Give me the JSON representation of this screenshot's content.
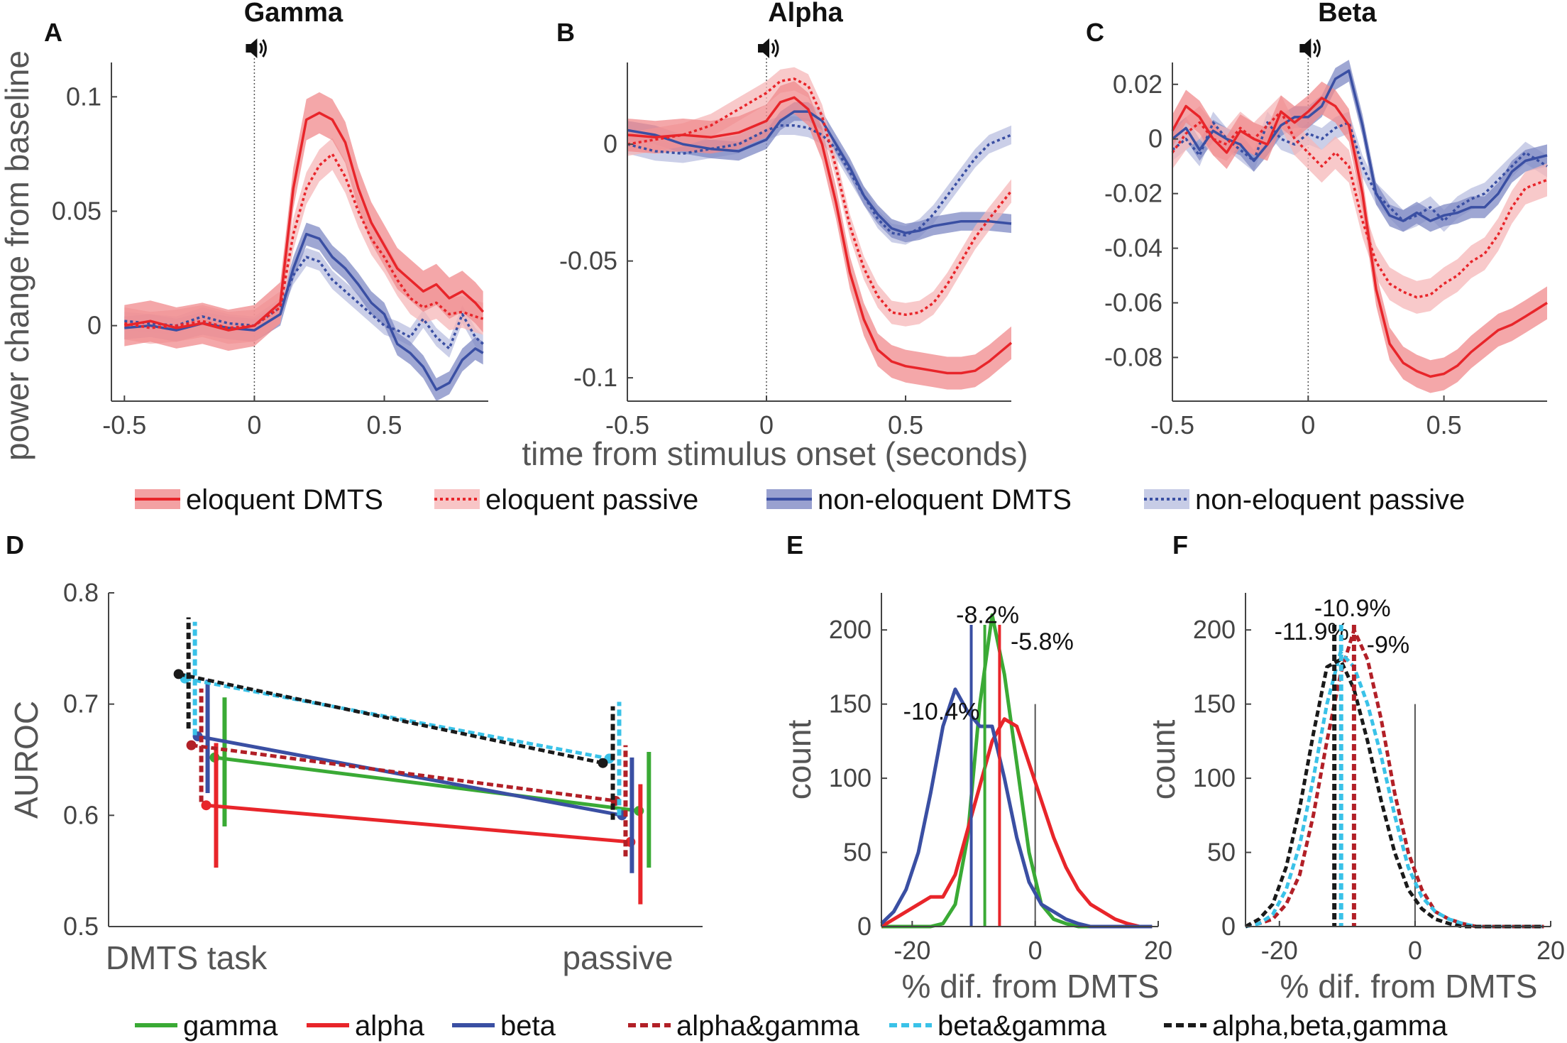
{
  "colors": {
    "red": "#e8252a",
    "red_band": "#f08a8c",
    "red_band_light": "#f6b7b8",
    "blue": "#3a4fa3",
    "blue_band": "#7f8ac4",
    "blue_band_light": "#b9bfe0",
    "green": "#3aaa35",
    "darkred": "#b22027",
    "cyan": "#3ac2e8",
    "black": "#1a1a1a",
    "axis": "#444444"
  },
  "shared": {
    "ylabel_top": "power change from baseline",
    "xlabel_top": "time from stimulus onset (seconds)",
    "speaker_icon": "speaker-icon"
  },
  "legend_top": [
    {
      "label": "eloquent DMTS",
      "style": "solid",
      "color": "red"
    },
    {
      "label": "eloquent passive",
      "style": "dotted",
      "color": "red"
    },
    {
      "label": "non-eloquent DMTS",
      "style": "solid",
      "color": "blue"
    },
    {
      "label": "non-eloquent passive",
      "style": "dotted",
      "color": "blue"
    }
  ],
  "legend_bottom": [
    {
      "label": "gamma",
      "style": "solid",
      "color": "green"
    },
    {
      "label": "alpha",
      "style": "solid",
      "color": "red"
    },
    {
      "label": "beta",
      "style": "solid",
      "color": "blue"
    },
    {
      "label": "alpha&gamma",
      "style": "dashed",
      "color": "darkred"
    },
    {
      "label": "beta&gamma",
      "style": "dashed",
      "color": "cyan"
    },
    {
      "label": "alpha,beta,gamma",
      "style": "dashed",
      "color": "black"
    }
  ],
  "chart_data": [
    {
      "panel": "A",
      "type": "line",
      "title": "Gamma",
      "xlim": [
        -0.55,
        0.9
      ],
      "ylim": [
        -0.033,
        0.115
      ],
      "xticks": [
        -0.5,
        0,
        0.5
      ],
      "xtick_labels": [
        "-0.5",
        "0",
        "0.5"
      ],
      "yticks": [
        0,
        0.05,
        0.1
      ],
      "ytick_labels": [
        "0",
        "0.05",
        "0.1"
      ],
      "x": [
        -0.5,
        -0.4,
        -0.3,
        -0.2,
        -0.1,
        0.0,
        0.1,
        0.15,
        0.2,
        0.25,
        0.3,
        0.35,
        0.4,
        0.45,
        0.5,
        0.55,
        0.6,
        0.65,
        0.7,
        0.75,
        0.8,
        0.85,
        0.88
      ],
      "series": [
        {
          "name": "eloquent DMTS",
          "style": "solid",
          "color": "red",
          "band": 0.009,
          "values": [
            0.0,
            0.002,
            -0.001,
            0.001,
            -0.002,
            0.0,
            0.01,
            0.06,
            0.09,
            0.093,
            0.09,
            0.08,
            0.06,
            0.045,
            0.035,
            0.025,
            0.02,
            0.015,
            0.018,
            0.012,
            0.015,
            0.01,
            0.006
          ]
        },
        {
          "name": "eloquent passive",
          "style": "dotted",
          "color": "red",
          "band": 0.007,
          "values": [
            0.001,
            -0.001,
            0.0,
            0.002,
            -0.001,
            0.0,
            0.008,
            0.04,
            0.06,
            0.07,
            0.075,
            0.065,
            0.05,
            0.038,
            0.03,
            0.02,
            0.012,
            0.008,
            0.01,
            0.005,
            0.006,
            0.004,
            0.003
          ]
        },
        {
          "name": "non-eloquent DMTS",
          "style": "solid",
          "color": "blue",
          "band": 0.005,
          "values": [
            -0.001,
            0.0,
            -0.002,
            0.001,
            -0.001,
            -0.002,
            0.005,
            0.025,
            0.04,
            0.038,
            0.03,
            0.025,
            0.018,
            0.01,
            0.005,
            -0.008,
            -0.012,
            -0.018,
            -0.028,
            -0.025,
            -0.015,
            -0.01,
            -0.012
          ]
        },
        {
          "name": "non-eloquent passive",
          "style": "dotted",
          "color": "blue",
          "band": 0.004,
          "values": [
            0.002,
            0.001,
            0.0,
            0.004,
            0.001,
            0.0,
            0.008,
            0.022,
            0.03,
            0.028,
            0.02,
            0.015,
            0.01,
            0.005,
            0.0,
            -0.002,
            -0.005,
            0.003,
            -0.005,
            -0.01,
            0.005,
            -0.005,
            -0.008
          ]
        }
      ]
    },
    {
      "panel": "B",
      "type": "line",
      "title": "Alpha",
      "xlim": [
        -0.5,
        0.88
      ],
      "ylim": [
        -0.11,
        0.035
      ],
      "xticks": [
        -0.5,
        0,
        0.5
      ],
      "xtick_labels": [
        "-0.5",
        "0",
        "0.5"
      ],
      "yticks": [
        -0.1,
        -0.05,
        0
      ],
      "ytick_labels": [
        "-0.1",
        "-0.05",
        "0"
      ],
      "x": [
        -0.5,
        -0.4,
        -0.3,
        -0.2,
        -0.1,
        0.0,
        0.05,
        0.1,
        0.15,
        0.2,
        0.25,
        0.3,
        0.35,
        0.4,
        0.45,
        0.5,
        0.55,
        0.6,
        0.65,
        0.7,
        0.75,
        0.8,
        0.88
      ],
      "series": [
        {
          "name": "eloquent DMTS",
          "style": "solid",
          "color": "red",
          "band": 0.007,
          "values": [
            0.004,
            0.003,
            0.004,
            0.003,
            0.005,
            0.01,
            0.018,
            0.02,
            0.015,
            0.0,
            -0.025,
            -0.055,
            -0.075,
            -0.088,
            -0.093,
            -0.095,
            -0.096,
            -0.097,
            -0.098,
            -0.098,
            -0.097,
            -0.093,
            -0.085
          ]
        },
        {
          "name": "eloquent passive",
          "style": "dotted",
          "color": "red",
          "band": 0.005,
          "values": [
            0.0,
            0.002,
            0.004,
            0.008,
            0.015,
            0.022,
            0.027,
            0.028,
            0.025,
            0.012,
            -0.01,
            -0.035,
            -0.053,
            -0.065,
            -0.072,
            -0.073,
            -0.072,
            -0.068,
            -0.06,
            -0.05,
            -0.04,
            -0.032,
            -0.02
          ]
        },
        {
          "name": "non-eloquent DMTS",
          "style": "solid",
          "color": "blue",
          "band": 0.004,
          "values": [
            0.006,
            0.004,
            0.0,
            -0.002,
            -0.003,
            0.002,
            0.01,
            0.014,
            0.014,
            0.01,
            0.0,
            -0.01,
            -0.022,
            -0.03,
            -0.036,
            -0.038,
            -0.037,
            -0.035,
            -0.034,
            -0.033,
            -0.033,
            -0.033,
            -0.034
          ]
        },
        {
          "name": "non-eloquent passive",
          "style": "dotted",
          "color": "blue",
          "band": 0.004,
          "values": [
            0.0,
            -0.003,
            -0.004,
            -0.002,
            0.0,
            0.006,
            0.008,
            0.008,
            0.007,
            0.004,
            -0.002,
            -0.012,
            -0.022,
            -0.032,
            -0.038,
            -0.039,
            -0.036,
            -0.03,
            -0.022,
            -0.014,
            -0.006,
            0.0,
            0.004
          ]
        }
      ]
    },
    {
      "panel": "C",
      "type": "line",
      "title": "Beta",
      "xlim": [
        -0.5,
        0.88
      ],
      "ylim": [
        -0.096,
        0.028
      ],
      "xticks": [
        -0.5,
        0,
        0.5
      ],
      "xtick_labels": [
        "-0.5",
        "0",
        "0.5"
      ],
      "yticks": [
        -0.08,
        -0.06,
        -0.04,
        -0.02,
        0,
        0.02
      ],
      "ytick_labels": [
        "-0.08",
        "-0.06",
        "-0.04",
        "-0.02",
        "0",
        "0.02"
      ],
      "x": [
        -0.5,
        -0.45,
        -0.4,
        -0.35,
        -0.3,
        -0.25,
        -0.2,
        -0.15,
        -0.1,
        -0.05,
        0.0,
        0.05,
        0.1,
        0.15,
        0.2,
        0.25,
        0.3,
        0.35,
        0.4,
        0.45,
        0.5,
        0.55,
        0.6,
        0.65,
        0.7,
        0.75,
        0.8,
        0.88
      ],
      "series": [
        {
          "name": "eloquent DMTS",
          "style": "solid",
          "color": "red",
          "band": 0.006,
          "values": [
            0.003,
            0.012,
            0.008,
            0.0,
            -0.005,
            0.003,
            0.0,
            -0.002,
            0.01,
            0.006,
            0.01,
            0.015,
            0.012,
            0.005,
            -0.02,
            -0.055,
            -0.075,
            -0.082,
            -0.085,
            -0.087,
            -0.086,
            -0.083,
            -0.078,
            -0.074,
            -0.07,
            -0.068,
            -0.065,
            -0.06
          ]
        },
        {
          "name": "eloquent passive",
          "style": "dotted",
          "color": "red",
          "band": 0.006,
          "values": [
            -0.005,
            0.002,
            0.006,
            0.0,
            -0.002,
            0.004,
            0.0,
            0.005,
            0.01,
            0.0,
            -0.005,
            -0.01,
            -0.005,
            -0.01,
            -0.03,
            -0.045,
            -0.053,
            -0.056,
            -0.058,
            -0.057,
            -0.053,
            -0.05,
            -0.045,
            -0.042,
            -0.035,
            -0.025,
            -0.018,
            -0.015
          ]
        },
        {
          "name": "non-eloquent DMTS",
          "style": "solid",
          "color": "blue",
          "band": 0.004,
          "values": [
            0.0,
            0.004,
            -0.004,
            0.003,
            0.0,
            -0.002,
            -0.008,
            -0.002,
            0.005,
            0.008,
            0.008,
            0.012,
            0.022,
            0.025,
            0.005,
            -0.02,
            -0.028,
            -0.03,
            -0.027,
            -0.03,
            -0.028,
            -0.027,
            -0.025,
            -0.025,
            -0.02,
            -0.012,
            -0.008,
            -0.006
          ]
        },
        {
          "name": "non-eloquent passive",
          "style": "dotted",
          "color": "blue",
          "band": 0.004,
          "values": [
            -0.004,
            0.0,
            -0.006,
            0.006,
            0.0,
            -0.004,
            -0.008,
            0.006,
            0.0,
            -0.002,
            0.002,
            0.0,
            0.004,
            0.006,
            -0.01,
            -0.02,
            -0.025,
            -0.03,
            -0.028,
            -0.025,
            -0.03,
            -0.025,
            -0.022,
            -0.02,
            -0.015,
            -0.01,
            -0.005,
            -0.01
          ]
        }
      ]
    },
    {
      "panel": "D",
      "type": "line",
      "ylabel": "AUROC",
      "xlim": [
        -0.2,
        1.2
      ],
      "ylim": [
        0.5,
        0.8
      ],
      "categories": [
        "DMTS task",
        "passive"
      ],
      "yticks": [
        0.5,
        0.6,
        0.7,
        0.8
      ],
      "ytick_labels": [
        "0.5",
        "0.6",
        "0.7",
        "0.8"
      ],
      "series": [
        {
          "name": "gamma",
          "style": "solid",
          "color": "green",
          "offset": 0.05,
          "values": [
            0.652,
            0.604
          ],
          "ci": [
            [
              0.59,
              0.706
            ],
            [
              0.553,
              0.657
            ]
          ]
        },
        {
          "name": "alpha",
          "style": "solid",
          "color": "red",
          "offset": 0.03,
          "values": [
            0.609,
            0.576
          ],
          "ci": [
            [
              0.553,
              0.665
            ],
            [
              0.52,
              0.628
            ]
          ]
        },
        {
          "name": "beta",
          "style": "solid",
          "color": "blue",
          "offset": 0.01,
          "values": [
            0.671,
            0.6
          ],
          "ci": [
            [
              0.62,
              0.722
            ],
            [
              0.548,
              0.652
            ]
          ]
        },
        {
          "name": "alpha&gamma",
          "style": "dashed",
          "color": "darkred",
          "offset": -0.005,
          "values": [
            0.663,
            0.613
          ],
          "ci": [
            [
              0.612,
              0.714
            ],
            [
              0.563,
              0.663
            ]
          ]
        },
        {
          "name": "beta&gamma",
          "style": "dashed",
          "color": "cyan",
          "offset": -0.02,
          "values": [
            0.723,
            0.651
          ],
          "ci": [
            [
              0.672,
              0.774
            ],
            [
              0.6,
              0.702
            ]
          ]
        },
        {
          "name": "alpha,beta,gamma",
          "style": "dashed",
          "color": "black",
          "offset": -0.035,
          "values": [
            0.727,
            0.647
          ],
          "ci": [
            [
              0.678,
              0.778
            ],
            [
              0.596,
              0.698
            ]
          ]
        }
      ]
    },
    {
      "panel": "E",
      "type": "line",
      "xlabel": "% dif. from DMTS",
      "ylabel": "count",
      "xlim": [
        -25,
        20
      ],
      "ylim": [
        0,
        225
      ],
      "xticks": [
        -20,
        0,
        20
      ],
      "xtick_labels": [
        "-20",
        "0",
        "20"
      ],
      "yticks": [
        0,
        50,
        100,
        150,
        200
      ],
      "ytick_labels": [
        "0",
        "50",
        "100",
        "150",
        "200"
      ],
      "x": [
        -25,
        -23,
        -21,
        -19,
        -17,
        -15,
        -13,
        -11,
        -9,
        -7,
        -5,
        -3,
        -1,
        1,
        3,
        5,
        7,
        9,
        11,
        13,
        15,
        17,
        19
      ],
      "series": [
        {
          "name": "gamma",
          "style": "solid",
          "color": "green",
          "values": [
            0,
            0,
            0,
            0,
            0,
            2,
            15,
            60,
            150,
            210,
            170,
            110,
            50,
            15,
            5,
            2,
            0,
            0,
            0,
            0,
            0,
            0,
            0
          ]
        },
        {
          "name": "alpha",
          "style": "solid",
          "color": "red",
          "values": [
            0,
            5,
            10,
            15,
            20,
            20,
            35,
            65,
            95,
            125,
            140,
            135,
            110,
            85,
            60,
            40,
            25,
            15,
            10,
            5,
            2,
            0,
            0
          ]
        },
        {
          "name": "beta",
          "style": "solid",
          "color": "blue",
          "values": [
            2,
            10,
            25,
            50,
            90,
            135,
            160,
            145,
            135,
            135,
            100,
            60,
            30,
            15,
            10,
            5,
            2,
            0,
            0,
            0,
            0,
            0,
            0
          ]
        }
      ],
      "vlines": [
        {
          "x": -10.4,
          "color": "blue",
          "label": "-10.4%"
        },
        {
          "x": -8.2,
          "color": "green",
          "label": "-8.2%"
        },
        {
          "x": -5.8,
          "color": "red",
          "label": "-5.8%"
        }
      ],
      "zero_line": 0
    },
    {
      "panel": "F",
      "type": "line",
      "xlabel": "% dif. from DMTS",
      "ylabel": "count",
      "xlim": [
        -25,
        20
      ],
      "ylim": [
        0,
        225
      ],
      "xticks": [
        -20,
        0,
        20
      ],
      "xtick_labels": [
        "-20",
        "0",
        "20"
      ],
      "yticks": [
        0,
        50,
        100,
        150,
        200
      ],
      "ytick_labels": [
        "0",
        "50",
        "100",
        "150",
        "200"
      ],
      "x": [
        -25,
        -23,
        -21,
        -19,
        -17,
        -15,
        -13,
        -11,
        -9,
        -7,
        -5,
        -3,
        -1,
        1,
        3,
        5,
        7,
        9,
        11,
        13,
        15,
        17,
        19
      ],
      "series": [
        {
          "name": "alpha&gamma",
          "style": "dashed",
          "color": "darkred",
          "values": [
            0,
            2,
            5,
            15,
            35,
            75,
            125,
            170,
            200,
            180,
            140,
            90,
            50,
            25,
            10,
            5,
            2,
            0,
            0,
            0,
            0,
            0,
            0
          ]
        },
        {
          "name": "beta&gamma",
          "style": "dashed",
          "color": "cyan",
          "values": [
            0,
            2,
            8,
            25,
            55,
            100,
            150,
            185,
            175,
            150,
            115,
            75,
            40,
            20,
            10,
            5,
            2,
            0,
            0,
            0,
            0,
            0,
            0
          ]
        },
        {
          "name": "alpha,beta,gamma",
          "style": "dashed",
          "color": "black",
          "values": [
            0,
            5,
            15,
            40,
            80,
            130,
            175,
            180,
            160,
            125,
            85,
            50,
            25,
            12,
            5,
            2,
            0,
            0,
            0,
            0,
            0,
            0,
            0
          ]
        }
      ],
      "vlines": [
        {
          "x": -11.9,
          "color": "black",
          "label": "-11.9%"
        },
        {
          "x": -10.9,
          "color": "cyan",
          "label": "-10.9%"
        },
        {
          "x": -9,
          "color": "darkred",
          "label": "-9%"
        }
      ],
      "zero_line": 0
    }
  ]
}
